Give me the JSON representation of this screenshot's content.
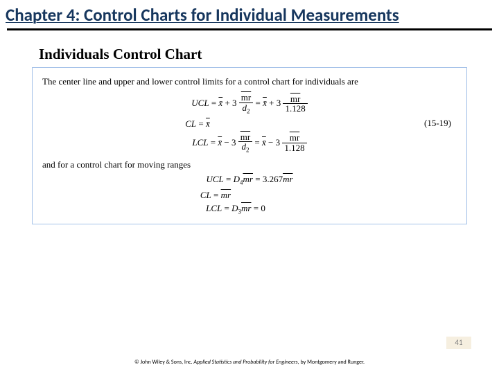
{
  "chapter_title": "Chapter 4: Control Charts for Individual Measurements",
  "subtitle": "Individuals Control Chart",
  "box": {
    "intro": "The center line and upper and lower control limits for a control chart for individuals are",
    "eq1": {
      "lhs": "UCL",
      "eq": " = ",
      "xbar": "x̄",
      "plus": " + 3 ",
      "frac1_num": "mr",
      "frac1_den": "d",
      "frac1_den_sub": "2",
      "mid": " = ",
      "xbar2": "x̄",
      "plus2": " + 3 ",
      "frac2_num": "mr",
      "frac2_den": "1.128"
    },
    "eq2": {
      "lhs": "CL",
      "eq": " = ",
      "rhs": "x̄"
    },
    "eq3": {
      "lhs": "LCL",
      "eq": " = ",
      "xbar": "x̄",
      "minus": " − 3 ",
      "frac1_num": "mr",
      "frac1_den": "d",
      "frac1_den_sub": "2",
      "mid": " = ",
      "xbar2": "x̄",
      "minus2": " − 3 ",
      "frac2_num": "mr",
      "frac2_den": "1.128"
    },
    "eq_number": "(15-19)",
    "middle_text": "and for a control chart for moving ranges",
    "eq4": {
      "lhs": "UCL",
      "eq": " = ",
      "d4": "D",
      "d4sub": "4",
      "mr": "mr",
      "mid": " = ",
      "val": "3.267",
      "mr2": "mr"
    },
    "eq5": {
      "lhs": "CL",
      "eq": " = ",
      "rhs": "mr"
    },
    "eq6": {
      "lhs": "LCL",
      "eq": " = ",
      "d3": "D",
      "d3sub": "3",
      "mr": "mr",
      "mid": " = ",
      "val": "0"
    }
  },
  "page_number": "41",
  "footer": {
    "copyright": "© John Wiley & Sons, Inc.  ",
    "book": "Applied Statistics and Probability for Engineers",
    "authors": ", by Montgomery and Runger."
  },
  "colors": {
    "title_color": "#17375e",
    "box_border": "#a3c1e8",
    "pagebox_bg": "#f6efe0",
    "pagebox_text": "#7f7f7f"
  }
}
